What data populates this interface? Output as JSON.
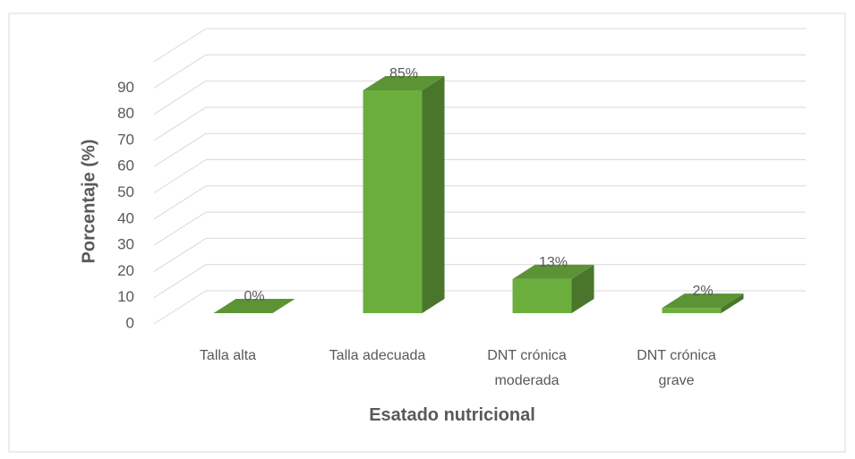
{
  "chart_data": {
    "type": "bar3d",
    "categories": [
      "Talla alta",
      "Talla adecuada",
      "DNT crónica moderada",
      "DNT crónica grave"
    ],
    "values": [
      0,
      85,
      13,
      2
    ],
    "value_labels": [
      "0%",
      "85%",
      "13%",
      "2%"
    ],
    "color": "#6cae3e",
    "ylim": [
      0,
      100
    ],
    "yticks": [
      0,
      10,
      20,
      30,
      40,
      50,
      60,
      70,
      80,
      90
    ],
    "grid": true,
    "y_label": "Porcentaje (%)",
    "x_label": "Esatado nutricional"
  }
}
